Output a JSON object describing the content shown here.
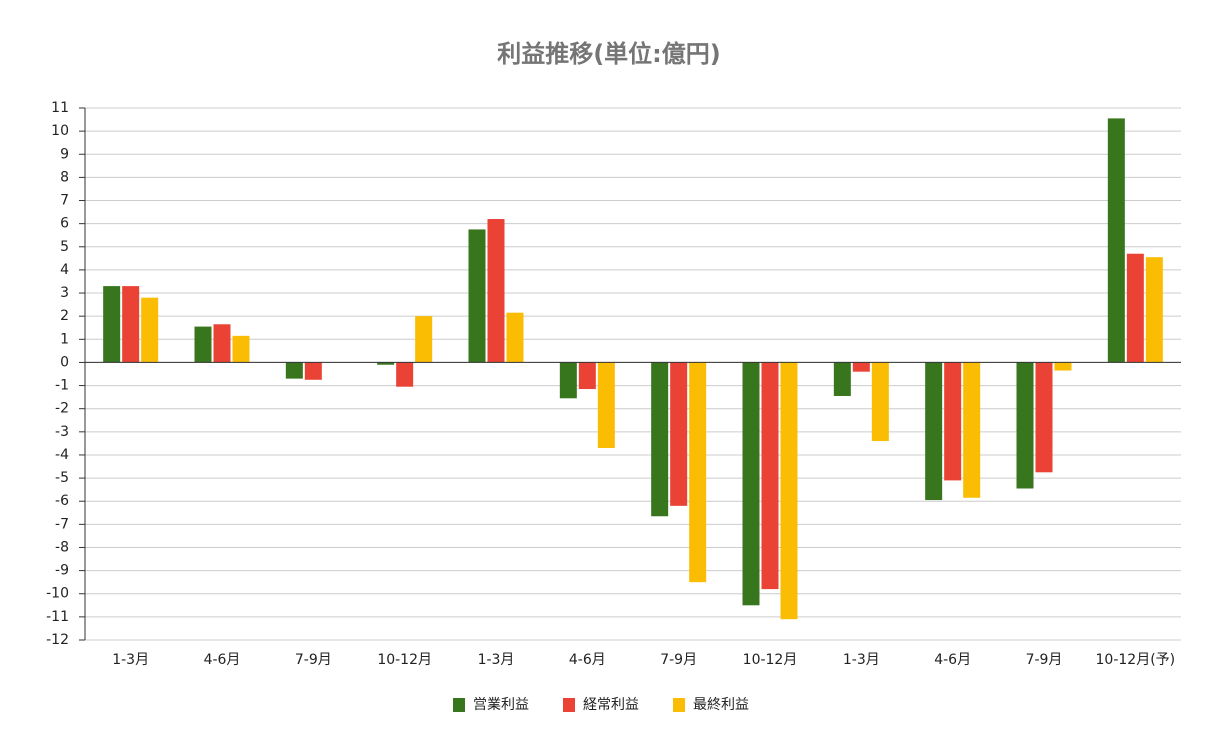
{
  "chart_data": {
    "type": "bar",
    "title": "利益推移(単位:億円)",
    "categories": [
      "1-3月",
      "4-6月",
      "7-9月",
      "10-12月",
      "1-3月",
      "4-6月",
      "7-9月",
      "10-12月",
      "1-3月",
      "4-6月",
      "7-9月",
      "10-12月(予)"
    ],
    "series": [
      {
        "name": "営業利益",
        "color": "#38761d",
        "values": [
          3.3,
          1.55,
          -0.7,
          -0.1,
          5.75,
          -1.55,
          -6.65,
          -10.5,
          -1.45,
          -5.95,
          -5.45,
          10.55
        ]
      },
      {
        "name": "経常利益",
        "color": "#ea4335",
        "values": [
          3.3,
          1.65,
          -0.75,
          -1.05,
          6.2,
          -1.15,
          -6.2,
          -9.8,
          -0.4,
          -5.1,
          -4.75,
          4.7
        ]
      },
      {
        "name": "最終利益",
        "color": "#fbbc04",
        "values": [
          2.8,
          1.15,
          0,
          2.0,
          2.15,
          -3.7,
          -9.5,
          -11.1,
          -3.4,
          -5.85,
          -0.35,
          4.55
        ]
      }
    ],
    "ylim": [
      -12,
      11
    ],
    "yticks": [
      11,
      10,
      9,
      8,
      7,
      6,
      5,
      4,
      3,
      2,
      1,
      0,
      -1,
      -2,
      -3,
      -4,
      -5,
      -6,
      -7,
      -8,
      -9,
      -10,
      -11,
      -12
    ],
    "grid": true,
    "legend": "bottom"
  }
}
